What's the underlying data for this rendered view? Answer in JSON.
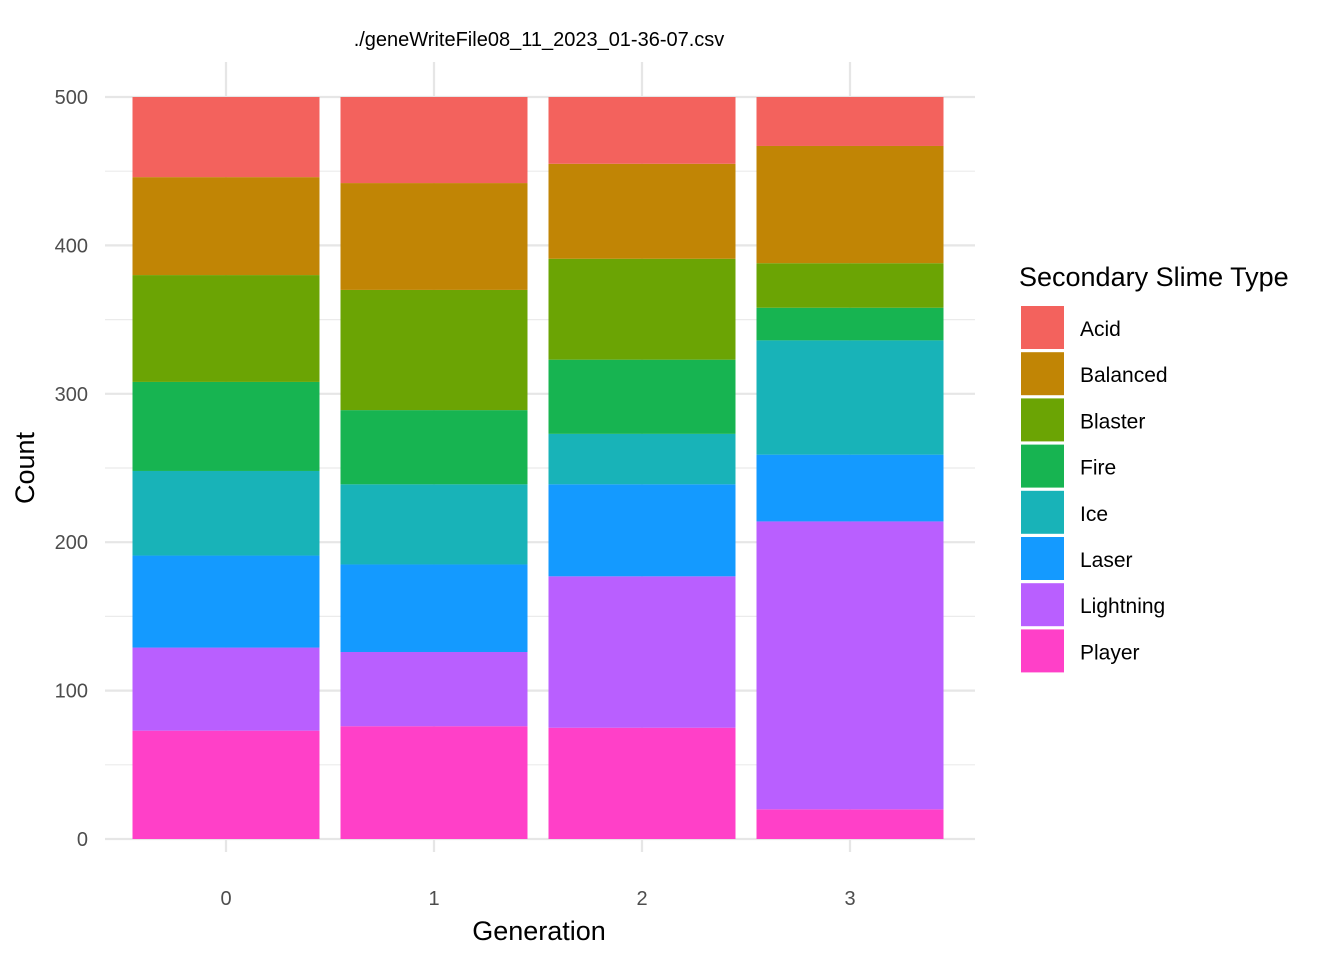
{
  "chart_data": {
    "type": "bar",
    "stacked": true,
    "title": "./geneWriteFile08_11_2023_01-36-07.csv",
    "xlabel": "Generation",
    "ylabel": "Count",
    "categories": [
      "0",
      "1",
      "2",
      "3"
    ],
    "ylim": [
      0,
      500
    ],
    "yticks": [
      0,
      100,
      200,
      300,
      400,
      500
    ],
    "grid": true,
    "legend": {
      "title": "Secondary Slime Type",
      "position": "right"
    },
    "series": [
      {
        "name": "Player",
        "color": "#FF40C8",
        "values": [
          73,
          76,
          75,
          20
        ]
      },
      {
        "name": "Lightning",
        "color": "#B95FFF",
        "values": [
          56,
          50,
          102,
          194
        ]
      },
      {
        "name": "Laser",
        "color": "#149AFF",
        "values": [
          62,
          59,
          62,
          45
        ]
      },
      {
        "name": "Ice",
        "color": "#18B3B8",
        "values": [
          57,
          54,
          34,
          77
        ]
      },
      {
        "name": "Fire",
        "color": "#17B451",
        "values": [
          60,
          50,
          50,
          22
        ]
      },
      {
        "name": "Blaster",
        "color": "#6BA404",
        "values": [
          72,
          81,
          68,
          30
        ]
      },
      {
        "name": "Balanced",
        "color": "#C18505",
        "values": [
          66,
          72,
          64,
          79
        ]
      },
      {
        "name": "Acid",
        "color": "#F3625D",
        "values": [
          54,
          58,
          45,
          33
        ]
      }
    ],
    "legend_order": [
      "Acid",
      "Balanced",
      "Blaster",
      "Fire",
      "Ice",
      "Laser",
      "Lightning",
      "Player"
    ]
  }
}
